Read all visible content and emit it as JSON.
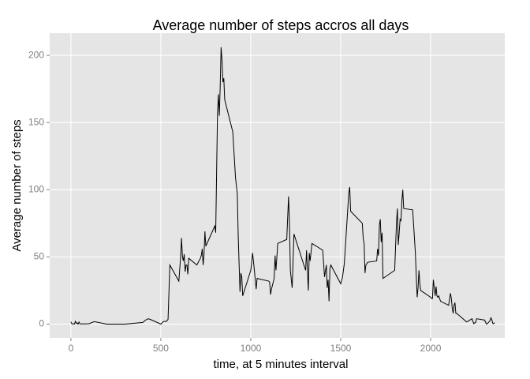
{
  "chart_data": {
    "type": "line",
    "title": "Average number of steps accros all days",
    "xlabel": "time, at 5 minutes interval",
    "ylabel": "Average number of steps",
    "x": [
      0,
      5,
      10,
      15,
      20,
      25,
      30,
      35,
      40,
      45,
      50,
      55,
      100,
      130,
      200,
      300,
      400,
      415,
      430,
      440,
      450,
      500,
      515,
      530,
      540,
      550,
      600,
      610,
      615,
      620,
      625,
      630,
      635,
      640,
      645,
      650,
      655,
      700,
      720,
      725,
      730,
      735,
      740,
      745,
      750,
      800,
      805,
      815,
      820,
      825,
      830,
      835,
      840,
      845,
      850,
      855,
      900,
      915,
      925,
      930,
      935,
      940,
      945,
      950,
      955,
      1000,
      1010,
      1020,
      1030,
      1035,
      1100,
      1105,
      1110,
      1115,
      1130,
      1135,
      1140,
      1150,
      1200,
      1210,
      1215,
      1220,
      1230,
      1240,
      1300,
      1305,
      1310,
      1320,
      1325,
      1330,
      1340,
      1400,
      1410,
      1420,
      1425,
      1430,
      1435,
      1440,
      1445,
      1500,
      1510,
      1520,
      1545,
      1550,
      1555,
      1620,
      1625,
      1630,
      1635,
      1640,
      1650,
      1700,
      1705,
      1710,
      1715,
      1720,
      1725,
      1730,
      1735,
      1800,
      1805,
      1810,
      1815,
      1820,
      1825,
      1830,
      1835,
      1840,
      1845,
      1850,
      1900,
      1915,
      1920,
      1925,
      1930,
      1935,
      1940,
      1945,
      2000,
      2005,
      2010,
      2015,
      2020,
      2025,
      2030,
      2035,
      2040,
      2045,
      2055,
      2100,
      2110,
      2115,
      2120,
      2125,
      2130,
      2135,
      2140,
      2145,
      2200,
      2230,
      2235,
      2240,
      2245,
      2250,
      2255,
      2300,
      2310,
      2320,
      2330,
      2335,
      2340,
      2345,
      2350,
      2355
    ],
    "series": [
      {
        "name": "steps",
        "color": "#000000",
        "values": [
          1.7,
          0.3,
          0.1,
          0.2,
          0.1,
          2.1,
          0.5,
          0.9,
          0,
          1.5,
          0.3,
          0.1,
          0.3,
          1.8,
          0,
          0,
          1.2,
          3,
          4,
          3.5,
          3,
          0,
          2,
          2,
          3.5,
          44,
          32,
          50,
          64,
          50,
          47,
          52,
          39,
          44,
          44,
          37,
          49,
          44,
          49,
          51,
          56,
          44,
          52,
          69,
          58,
          73,
          68,
          157,
          171,
          155,
          177,
          206,
          196,
          180,
          183,
          167,
          143,
          109,
          97,
          66,
          45,
          24,
          38,
          35,
          21,
          40,
          53,
          40,
          26,
          34,
          32,
          31,
          22,
          26,
          34,
          51,
          40,
          60,
          63,
          95,
          75,
          40,
          27,
          67,
          42,
          40,
          55,
          25,
          53,
          47,
          60,
          55,
          35,
          44,
          27,
          33,
          17,
          41,
          44,
          30,
          35,
          45,
          98,
          102,
          84,
          75,
          64,
          60,
          38,
          44,
          46,
          47,
          56,
          51,
          74,
          78,
          61,
          68,
          34,
          40,
          58,
          75,
          86,
          59,
          68,
          78,
          77,
          92,
          100,
          86,
          85,
          53,
          36,
          20,
          27,
          40,
          30,
          25,
          20,
          19,
          19,
          33,
          27,
          21,
          28,
          21,
          20,
          21,
          17,
          14,
          23,
          19,
          12,
          8,
          14,
          16,
          8,
          8,
          1.6,
          4,
          2,
          0.3,
          1,
          1,
          4,
          3,
          0,
          1,
          2.6,
          4.7,
          3.3,
          0.6,
          0.2,
          1.1
        ]
      }
    ],
    "xlim": [
      -118,
      2412
    ],
    "ylim": [
      -10.3,
      216.5
    ],
    "xticks": [
      0,
      500,
      1000,
      1500,
      2000
    ],
    "yticks": [
      0,
      50,
      100,
      150,
      200
    ],
    "grid": true
  }
}
